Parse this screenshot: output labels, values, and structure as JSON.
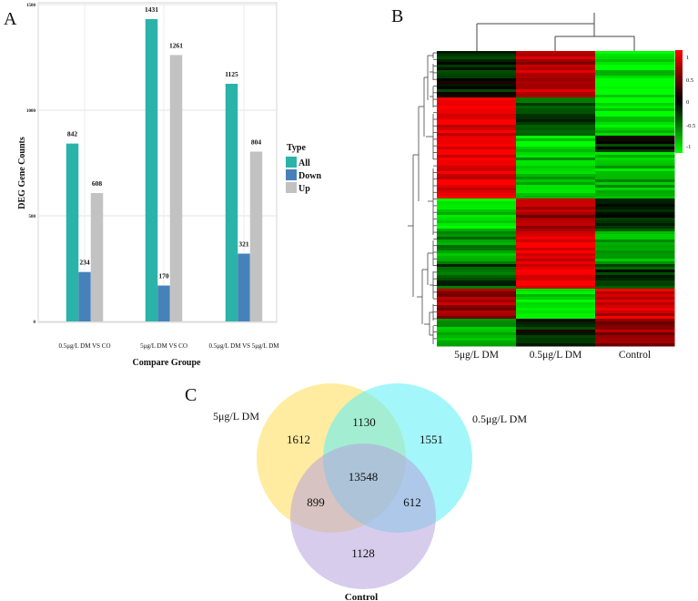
{
  "panels": {
    "a": "A",
    "b": "B",
    "c": "C"
  },
  "chart_data": [
    {
      "type": "bar",
      "ylabel": "DEG Gene Counts",
      "xlabel": "Compare Groupe",
      "ylim": [
        0,
        1500
      ],
      "yticks": [
        "0",
        "500",
        "1000",
        "1500"
      ],
      "categories": [
        "0.5μg/L DM VS CO",
        "5μg/L DM VS CO",
        "0.5μg/L DM VS 5μg/L DM"
      ],
      "series": [
        {
          "name": "All",
          "color": "#2bb3a9",
          "values": [
            842,
            1431,
            1125
          ],
          "labels": [
            "842",
            "1431",
            "1125"
          ]
        },
        {
          "name": "Down",
          "color": "#4682b9",
          "values": [
            234,
            170,
            321
          ],
          "labels": [
            "234",
            "170",
            "321"
          ]
        },
        {
          "name": "Up",
          "color": "#c2c2c2",
          "values": [
            608,
            1261,
            804
          ],
          "labels": [
            "608",
            "1261",
            "804"
          ]
        }
      ],
      "legend": {
        "title": "Type",
        "position": "right"
      },
      "grid": true
    },
    {
      "type": "heatmap",
      "columns": [
        "5μg/L DM",
        "0.5μg/L DM",
        "Control"
      ],
      "colorbar_ticks": [
        "1",
        "0.5",
        "0",
        "-0.5",
        "-1"
      ],
      "colorscale": [
        "#00ff00",
        "#000000",
        "#ff0000"
      ],
      "blocks": [
        {
          "from": 0,
          "to": 0.155,
          "values": [
            -0.1,
            0.7,
            -0.9
          ]
        },
        {
          "from": 0.155,
          "to": 0.29,
          "values": [
            0.95,
            -0.3,
            -0.9
          ]
        },
        {
          "from": 0.29,
          "to": 0.345,
          "values": [
            0.95,
            -0.9,
            -0.1
          ]
        },
        {
          "from": 0.345,
          "to": 0.5,
          "values": [
            0.95,
            -0.7,
            -0.7
          ]
        },
        {
          "from": 0.5,
          "to": 0.61,
          "values": [
            -0.9,
            0.6,
            -0.2
          ]
        },
        {
          "from": 0.61,
          "to": 0.725,
          "values": [
            -0.6,
            0.95,
            -0.6
          ]
        },
        {
          "from": 0.725,
          "to": 0.805,
          "values": [
            -0.3,
            0.95,
            -0.2
          ]
        },
        {
          "from": 0.805,
          "to": 0.905,
          "values": [
            0.6,
            -0.9,
            0.8
          ]
        },
        {
          "from": 0.905,
          "to": 1.0,
          "values": [
            -0.7,
            -0.1,
            0.6
          ]
        }
      ]
    },
    {
      "type": "venn",
      "sets": [
        {
          "name": "5μg/L DM",
          "color": "#ffe680"
        },
        {
          "name": "0.5μg/L DM",
          "color": "#66f0f5"
        },
        {
          "name": "Control",
          "color": "#b6a2dc"
        }
      ],
      "regions": {
        "only_5": "1612",
        "only_05": "1551",
        "only_control": "1128",
        "five_and_05": "1130",
        "five_and_control": "899",
        "05_and_control": "612",
        "all": "13548"
      }
    }
  ]
}
